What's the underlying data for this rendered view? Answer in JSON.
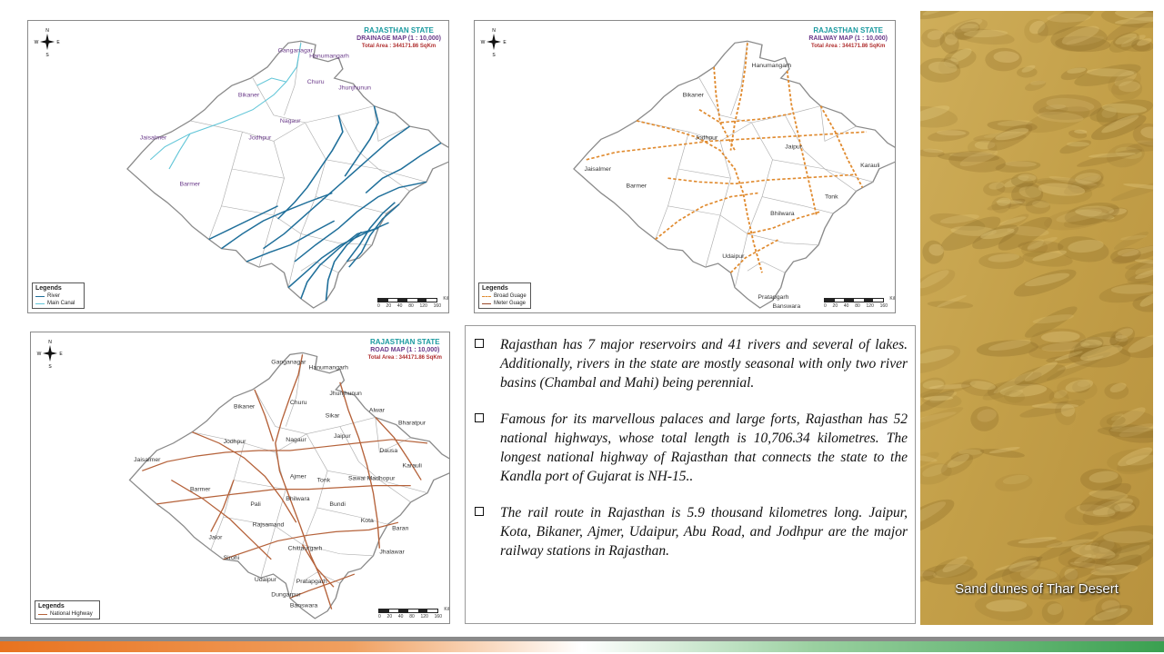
{
  "maps": {
    "drainage": {
      "title1": "RAJASTHAN STATE",
      "title2": "DRAINAGE MAP (1 : 10,000)",
      "area": "Total Area : 344171.86 SqKm",
      "legend_title": "Legends",
      "legend_items": [
        "River",
        "Main Canal"
      ],
      "cities": [
        "Ganganagar",
        "Hanumangarh",
        "Churu",
        "Bikaner",
        "Jhunjhunun",
        "Jaisalmer",
        "Nagaur",
        "Jodhpur",
        "Barmer"
      ]
    },
    "railway": {
      "title1": "RAJASTHAN STATE",
      "title2": "RAILWAY MAP (1 : 10,000)",
      "area": "Total Area : 344171.86 SqKm",
      "legend_title": "Legends",
      "legend_items": [
        "Broad Guage",
        "Meter Guage"
      ],
      "cities": [
        "Hanumangarh",
        "Bikaner",
        "Jaisalmer",
        "Jodhpur",
        "Barmer",
        "Jaipur",
        "Karauli",
        "Tonk",
        "Bhilwara",
        "Udaipur",
        "Pratapgarh",
        "Banswara"
      ]
    },
    "road": {
      "title1": "RAJASTHAN STATE",
      "title2": "ROAD MAP (1 : 10,000)",
      "area": "Total Area : 344171.86 SqKm",
      "legend_title": "Legends",
      "legend_items": [
        "National Highway"
      ],
      "cities": [
        "Ganganagar",
        "Hanumangarh",
        "Churu",
        "Jhunjhunun",
        "Bikaner",
        "Alwar",
        "Sikar",
        "Bharatpur",
        "Jaisalmer",
        "Jodhpur",
        "Nagaur",
        "Jaipur",
        "Dausa",
        "Karauli",
        "Ajmer",
        "Tonk",
        "Sawai Madhopur",
        "Barmer",
        "Pali",
        "Bhilwara",
        "Bundi",
        "Rajsamand",
        "Kota",
        "Baran",
        "Jalor",
        "Sirohi",
        "Chittaurgarh",
        "Jhalawar",
        "Udaipur",
        "Pratapgarh",
        "Dungarpur",
        "Banswara"
      ]
    },
    "scale_numbers": [
      "0",
      "20",
      "40",
      "80",
      "120",
      "160"
    ],
    "scale_unit": "Kilometers"
  },
  "text": {
    "bullets": [
      "Rajasthan has 7 major reservoirs and 41 rivers and several of lakes. Additionally, rivers in the state are mostly seasonal with only two river basins (Chambal and Mahi) being perennial.",
      "Famous for its marvellous palaces and large forts, Rajasthan has 52 national highways, whose total length is 10,706.34 kilometres. The longest national highway of Rajasthan that connects the state to the Kandla port of Gujarat is NH-15..",
      "The rail route in Rajasthan is 5.9 thousand kilometres long. Jaipur, Kota, Bikaner, Ajmer, Udaipur, Abu Road, and Jodhpur are the major railway stations in Rajasthan."
    ]
  },
  "photo": {
    "caption": "Sand dunes of Thar Desert"
  },
  "colors": {
    "river": "#1f6f9a",
    "canal": "#62c6d8",
    "rail": "#e08a2e",
    "road": "#b5623a",
    "boundary": "#9a9a9a",
    "footer": [
      "#e8731f",
      "#8a8a8a",
      "#3aa050"
    ]
  }
}
